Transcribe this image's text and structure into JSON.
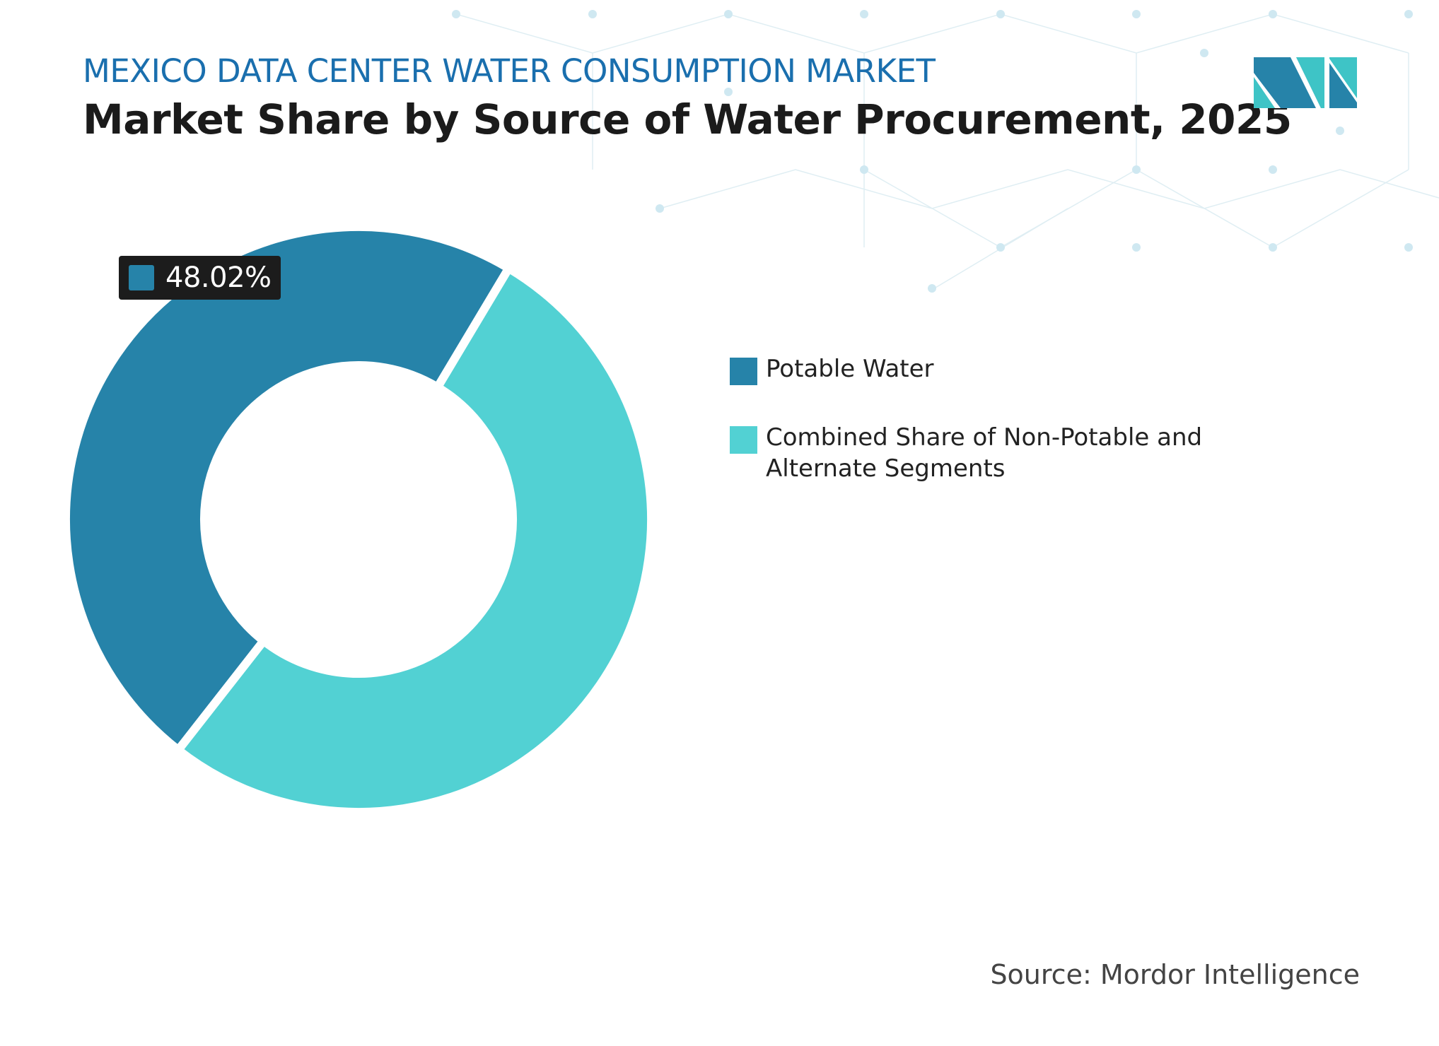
{
  "header": {
    "kicker": "MEXICO DATA CENTER WATER CONSUMPTION MARKET",
    "title": "Market Share by Source of Water Procurement, 2025"
  },
  "logo": {
    "name": "mordor-intelligence-logo",
    "colors": [
      "#2683a9",
      "#3ec4c6"
    ]
  },
  "chart_data": {
    "type": "pie",
    "variant": "donut",
    "title": "Market Share by Source of Water Procurement, 2025",
    "series": [
      {
        "name": "Potable Water",
        "value": 48.02,
        "color": "#2683a9",
        "label": "48.02%"
      },
      {
        "name": "Combined Share of Non-Potable and Alternate Segments",
        "value": 51.98,
        "color": "#52d1d3"
      }
    ],
    "legend_position": "right"
  },
  "footer": {
    "source": "Source: Mordor Intelligence"
  }
}
